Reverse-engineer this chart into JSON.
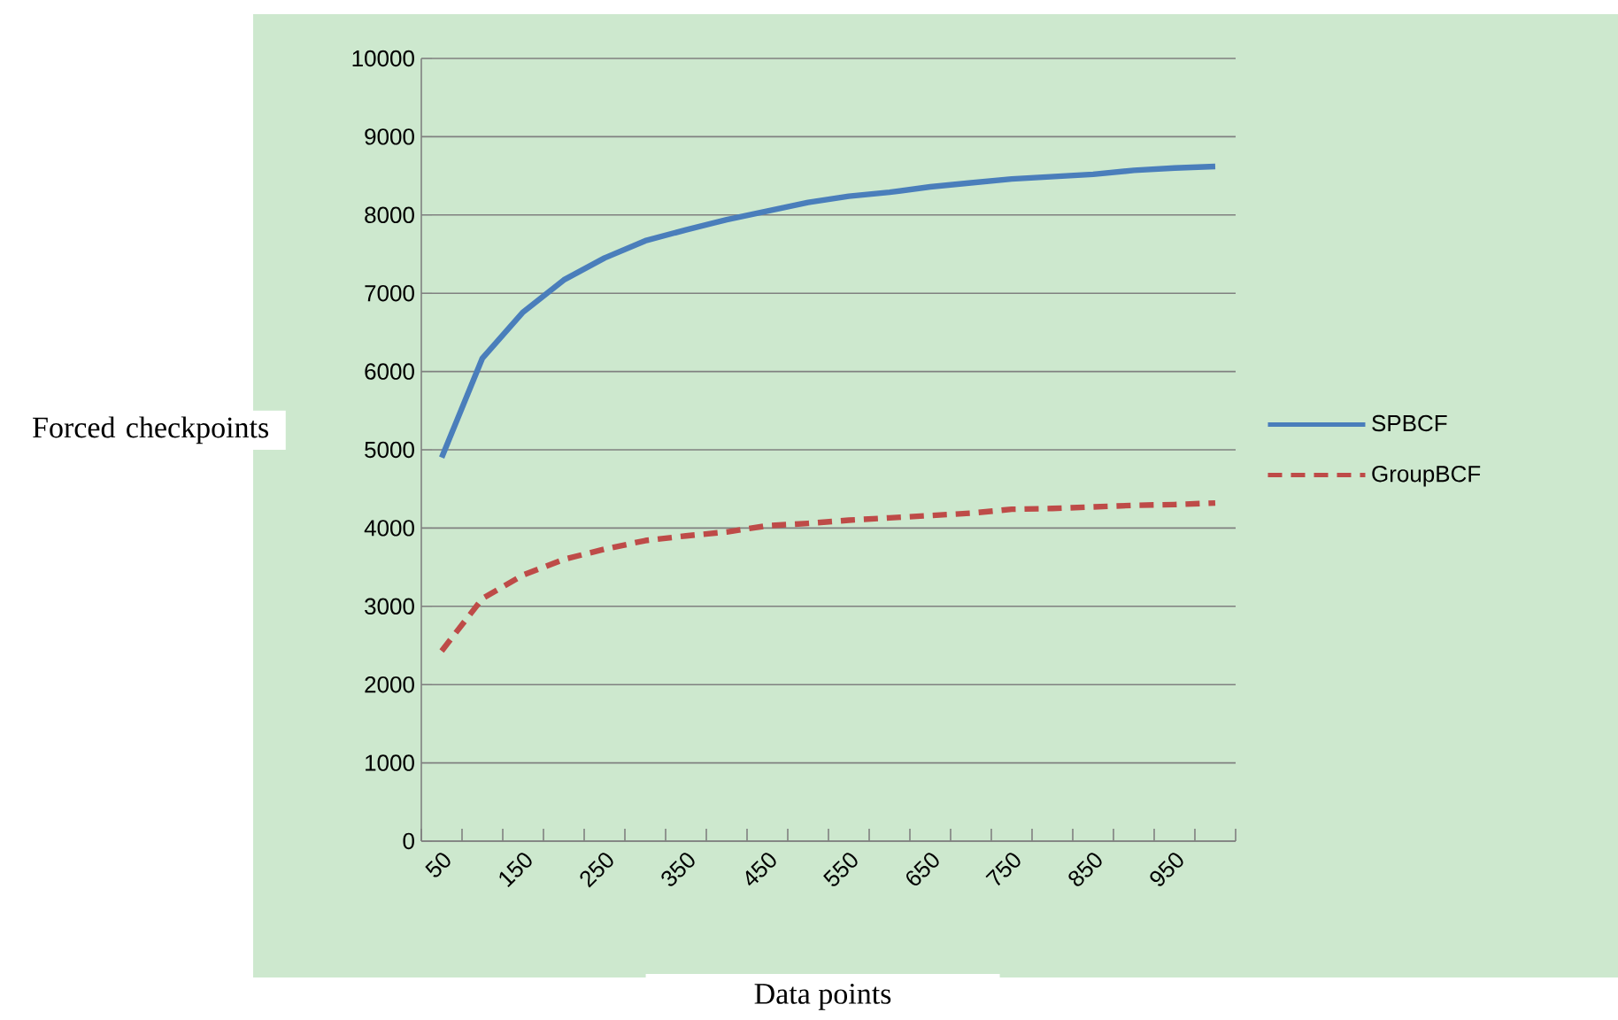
{
  "chart_data": {
    "type": "line",
    "xlabel": "Data points",
    "ylabel": "Forced checkpoints",
    "categories": [
      "50",
      null,
      "150",
      null,
      "250",
      null,
      "350",
      null,
      "450",
      null,
      "550",
      null,
      "650",
      null,
      "750",
      null,
      "850",
      null,
      "950",
      null
    ],
    "ylim": [
      0,
      10000
    ],
    "yticks": [
      0,
      1000,
      2000,
      3000,
      4000,
      5000,
      6000,
      7000,
      8000,
      9000,
      10000
    ],
    "grid": "y",
    "legend": "right",
    "marker": "none",
    "series": [
      {
        "name": "SPBCF",
        "color": "#4a7ebb",
        "line_style": "solid",
        "values": [
          4900,
          6170,
          6760,
          7170,
          7450,
          7670,
          7810,
          7940,
          8050,
          8160,
          8240,
          8290,
          8360,
          8410,
          8460,
          8490,
          8520,
          8570,
          8600,
          8620
        ]
      },
      {
        "name": "GroupBCF",
        "color": "#be4b48",
        "line_style": "dashed",
        "values": [
          2430,
          3100,
          3400,
          3600,
          3730,
          3840,
          3900,
          3950,
          4030,
          4060,
          4100,
          4130,
          4160,
          4190,
          4240,
          4250,
          4270,
          4290,
          4300,
          4320
        ]
      }
    ]
  }
}
